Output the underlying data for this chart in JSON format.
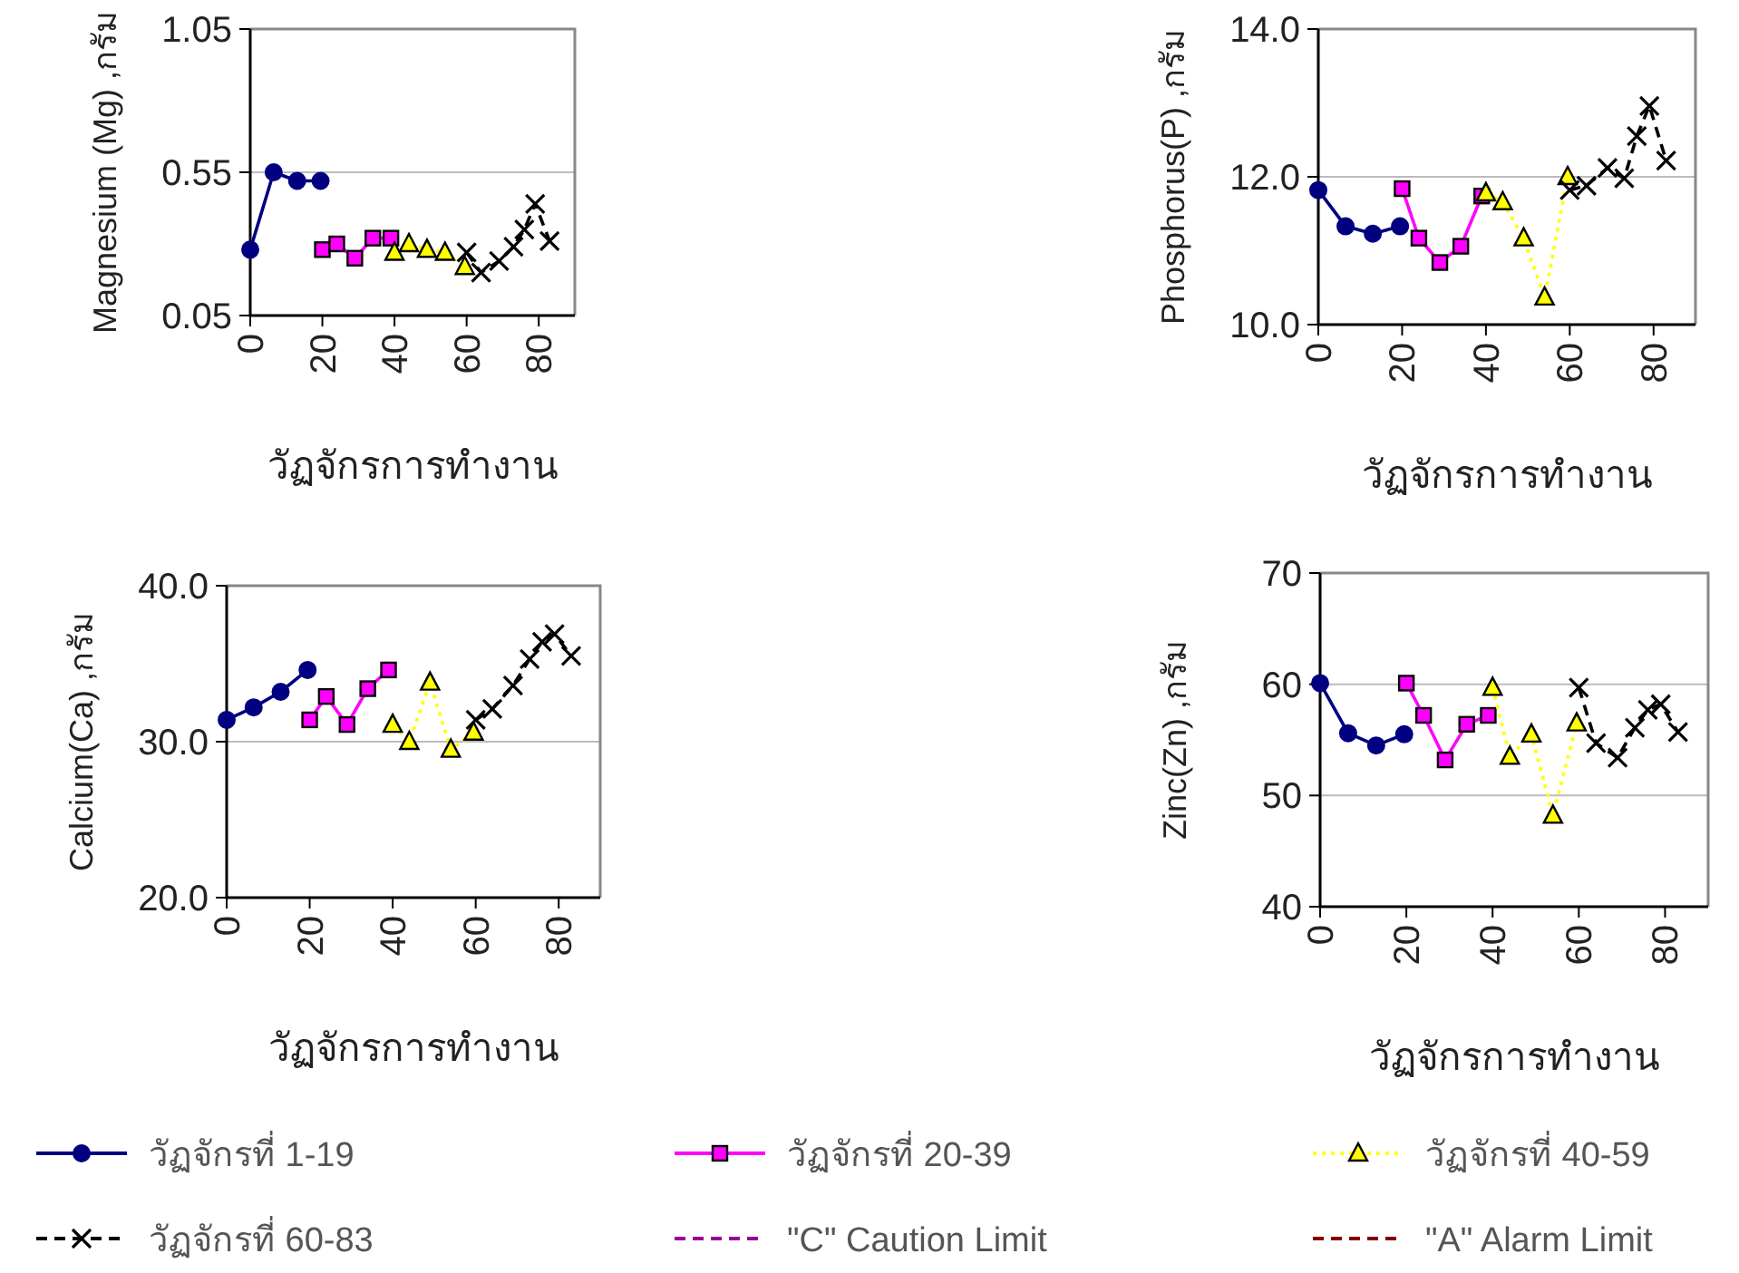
{
  "chart_data": [
    {
      "type": "line",
      "ylabel": "Magnesium (Mg) ,กรัม",
      "xlabel": "วัฏจักรการทำงาน",
      "xlim": [
        0,
        90
      ],
      "xticks": [
        0,
        20,
        40,
        60,
        80
      ],
      "ylim": [
        0.05,
        1.05
      ],
      "yticks": [
        0.05,
        0.55,
        1.05
      ],
      "grid": "y",
      "series": [
        {
          "color": "#000080",
          "marker": "circle",
          "line_style": "solid",
          "x": [
            0,
            6.5,
            13,
            19.5
          ],
          "values": [
            0.28,
            0.55,
            0.52,
            0.52
          ]
        },
        {
          "color": "#ff00ff",
          "marker": "square",
          "line_style": "solid",
          "x": [
            20,
            24,
            29,
            34,
            39
          ],
          "values": [
            0.28,
            0.3,
            0.25,
            0.32,
            0.32
          ]
        },
        {
          "color": "#ffff00",
          "marker": "triangle",
          "line_style": "dotted",
          "x": [
            40,
            44,
            49,
            54,
            59.5
          ],
          "values": [
            0.27,
            0.3,
            0.28,
            0.27,
            0.22
          ]
        },
        {
          "color": "#000000",
          "marker": "cross",
          "line_style": "dashed",
          "x": [
            60,
            64,
            69,
            73,
            76,
            79,
            83
          ],
          "values": [
            0.27,
            0.2,
            0.24,
            0.29,
            0.35,
            0.44,
            0.31
          ]
        }
      ]
    },
    {
      "type": "line",
      "ylabel": "Phosphorus(P) ,กรัม",
      "xlabel": "วัฏจักรการทำงาน",
      "xlim": [
        0,
        90
      ],
      "xticks": [
        0,
        20,
        40,
        60,
        80
      ],
      "ylim": [
        10,
        14
      ],
      "yticks": [
        {
          "value": 10,
          "label": "10.0"
        },
        {
          "value": 12,
          "label": "12.0"
        },
        {
          "value": 14,
          "label": "14.0"
        }
      ],
      "grid": "y",
      "series": [
        {
          "color": "#000080",
          "marker": "circle",
          "line_style": "solid",
          "x": [
            0,
            6.5,
            13,
            19.5
          ],
          "values": [
            11.82,
            11.33,
            11.23,
            11.33
          ]
        },
        {
          "color": "#ff00ff",
          "marker": "square",
          "line_style": "solid",
          "x": [
            20,
            24,
            29,
            34,
            39
          ],
          "values": [
            11.84,
            11.17,
            10.84,
            11.06,
            11.74
          ]
        },
        {
          "color": "#ffff00",
          "marker": "triangle",
          "line_style": "dotted",
          "x": [
            40,
            44,
            49,
            54,
            59.5
          ],
          "values": [
            11.78,
            11.66,
            11.17,
            10.37,
            12.0
          ]
        },
        {
          "color": "#000000",
          "marker": "cross",
          "line_style": "dashed",
          "x": [
            60,
            64,
            69,
            73,
            76,
            79,
            83
          ],
          "values": [
            11.82,
            11.88,
            12.12,
            11.98,
            12.55,
            12.96,
            12.22
          ]
        }
      ]
    },
    {
      "type": "line",
      "ylabel": "Calcium(Ca) ,กรัม",
      "xlabel": "วัฏจักรการทำงาน",
      "xlim": [
        0,
        90
      ],
      "xticks": [
        0,
        20,
        40,
        60,
        80
      ],
      "ylim": [
        20,
        40
      ],
      "yticks": [
        {
          "value": 20,
          "label": "20.0"
        },
        {
          "value": 30,
          "label": "30.0"
        },
        {
          "value": 40,
          "label": "40.0"
        }
      ],
      "grid": "y",
      "series": [
        {
          "color": "#000080",
          "marker": "circle",
          "line_style": "solid",
          "x": [
            0,
            6.5,
            13,
            19.5
          ],
          "values": [
            31.4,
            32.2,
            33.2,
            34.6
          ]
        },
        {
          "color": "#ff00ff",
          "marker": "square",
          "line_style": "solid",
          "x": [
            20,
            24,
            29,
            34,
            39
          ],
          "values": [
            31.4,
            32.9,
            31.1,
            33.4,
            34.6
          ]
        },
        {
          "color": "#ffff00",
          "marker": "triangle",
          "line_style": "dotted",
          "x": [
            40,
            44,
            49,
            54,
            59.5
          ],
          "values": [
            31.1,
            30.0,
            33.8,
            29.5,
            30.6
          ]
        },
        {
          "color": "#000000",
          "marker": "cross",
          "line_style": "dashed",
          "x": [
            60,
            64,
            69,
            73,
            76,
            79,
            83
          ],
          "values": [
            31.4,
            32.1,
            33.6,
            35.3,
            36.4,
            36.9,
            35.5
          ]
        }
      ]
    },
    {
      "type": "line",
      "ylabel": "Zinc(Zn) ,กรัม",
      "xlabel": "วัฏจักรการทำงาน",
      "xlim": [
        0,
        90
      ],
      "xticks": [
        0,
        20,
        40,
        60,
        80
      ],
      "ylim": [
        40,
        70
      ],
      "yticks": [
        40,
        50,
        60,
        70
      ],
      "grid": "y",
      "legend": "bottom",
      "series": [
        {
          "name": "วัฏจักรที่ 1-19",
          "color": "#000080",
          "marker": "circle",
          "line_style": "solid",
          "x": [
            0,
            6.5,
            13,
            19.5
          ],
          "values": [
            60.1,
            55.6,
            54.5,
            55.5
          ]
        },
        {
          "name": "วัฏจักรที่ 20-39",
          "color": "#ff00ff",
          "marker": "square",
          "line_style": "solid",
          "x": [
            20,
            24,
            29,
            34,
            39
          ],
          "values": [
            60.1,
            57.2,
            53.2,
            56.4,
            57.2
          ]
        },
        {
          "name": "วัฏจักรที่ 40-59",
          "color": "#ffff00",
          "marker": "triangle",
          "line_style": "dotted",
          "x": [
            40,
            44,
            49,
            54,
            59.5
          ],
          "values": [
            59.7,
            53.5,
            55.5,
            48.2,
            56.5
          ]
        },
        {
          "name": "วัฏจักรที่ 60-83",
          "color": "#000000",
          "marker": "cross",
          "line_style": "dashed",
          "x": [
            60,
            64,
            69,
            73,
            76,
            79,
            83
          ],
          "values": [
            59.7,
            54.7,
            53.4,
            56.1,
            57.7,
            58.2,
            55.7
          ]
        },
        {
          "name": "\"C\" Caution Limit",
          "color": "#990099",
          "marker": "none",
          "line_style": "dashed"
        },
        {
          "name": "\"A\" Alarm Limit",
          "color": "#800000",
          "marker": "none",
          "line_style": "dashed"
        }
      ]
    }
  ]
}
